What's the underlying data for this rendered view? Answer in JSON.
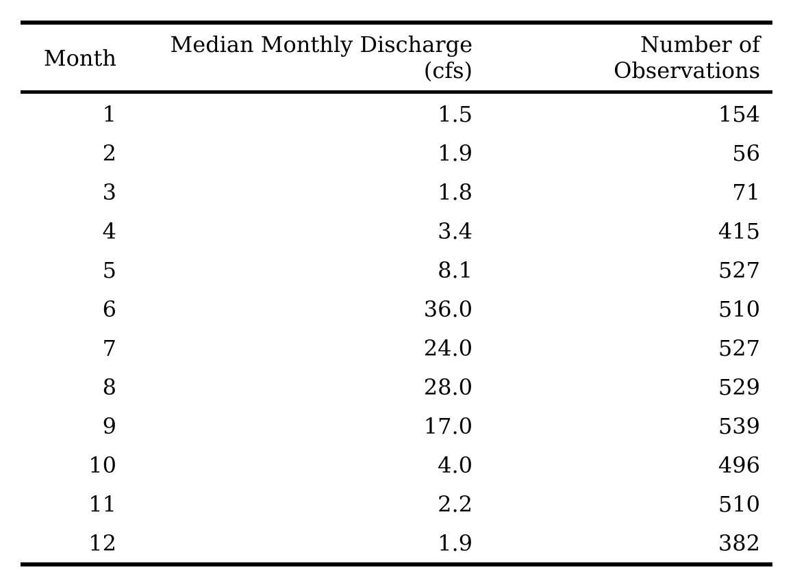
{
  "table": {
    "headers": {
      "month": "Month",
      "discharge_line1": "Median Monthly Discharge",
      "discharge_line2": "(cfs)",
      "obs_line1": "Number of",
      "obs_line2": "Observations"
    },
    "rows": [
      {
        "month": "1",
        "discharge": "1.5",
        "observations": "154"
      },
      {
        "month": "2",
        "discharge": "1.9",
        "observations": "56"
      },
      {
        "month": "3",
        "discharge": "1.8",
        "observations": "71"
      },
      {
        "month": "4",
        "discharge": "3.4",
        "observations": "415"
      },
      {
        "month": "5",
        "discharge": "8.1",
        "observations": "527"
      },
      {
        "month": "6",
        "discharge": "36.0",
        "observations": "510"
      },
      {
        "month": "7",
        "discharge": "24.0",
        "observations": "527"
      },
      {
        "month": "8",
        "discharge": "28.0",
        "observations": "529"
      },
      {
        "month": "9",
        "discharge": "17.0",
        "observations": "539"
      },
      {
        "month": "10",
        "discharge": "4.0",
        "observations": "496"
      },
      {
        "month": "11",
        "discharge": "2.2",
        "observations": "510"
      },
      {
        "month": "12",
        "discharge": "1.9",
        "observations": "382"
      }
    ]
  }
}
